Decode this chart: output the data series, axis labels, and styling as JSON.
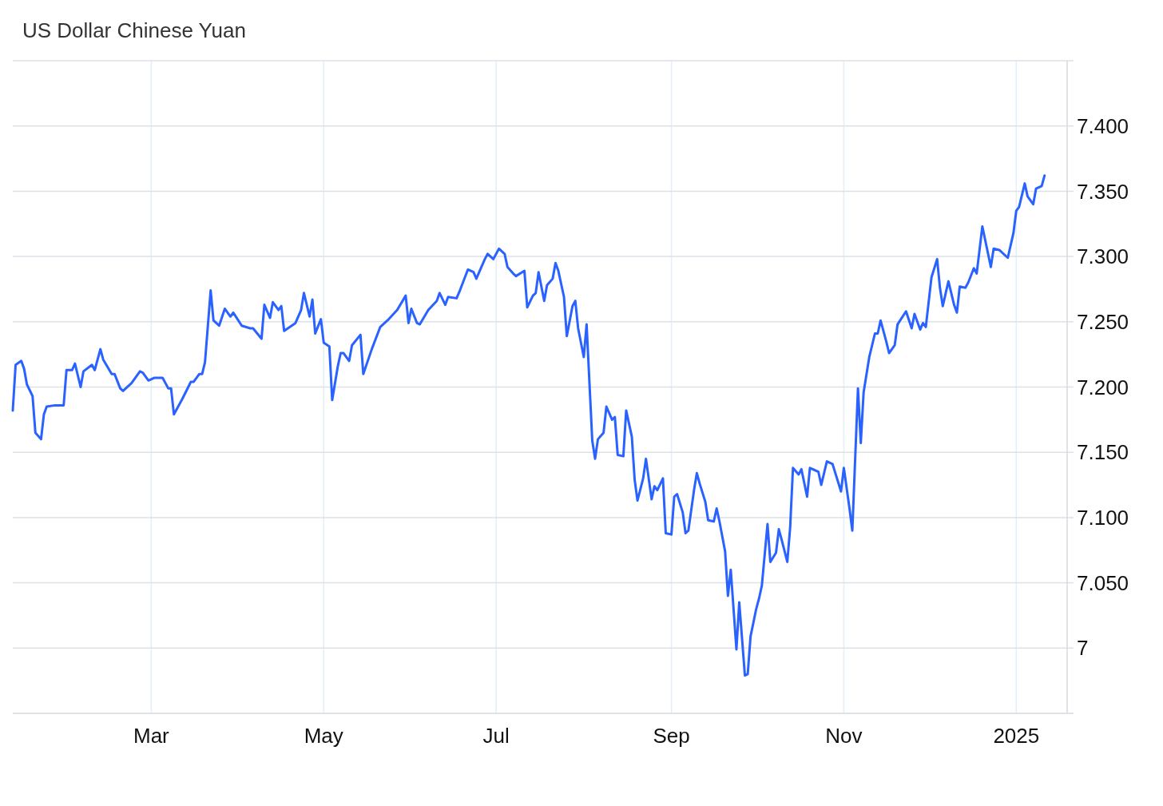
{
  "chart_data": {
    "type": "line",
    "title": "US Dollar Chinese Yuan",
    "xlim": [
      "2024-01-12",
      "2025-01-19"
    ],
    "xticks": [
      {
        "value": "2024-03-01",
        "label": "Mar"
      },
      {
        "value": "2024-05-01",
        "label": "May"
      },
      {
        "value": "2024-07-01",
        "label": "Jul"
      },
      {
        "value": "2024-09-01",
        "label": "Sep"
      },
      {
        "value": "2024-11-01",
        "label": "Nov"
      },
      {
        "value": "2025-01-01",
        "label": "2025"
      }
    ],
    "ylim": [
      6.95,
      7.45
    ],
    "yticks": [
      7,
      {
        "value": 7.05,
        "label": "7.050"
      },
      {
        "value": 7.1,
        "label": "7.100"
      },
      {
        "value": 7.15,
        "label": "7.150"
      },
      {
        "value": 7.2,
        "label": "7.200"
      },
      {
        "value": 7.25,
        "label": "7.250"
      },
      {
        "value": 7.3,
        "label": "7.300"
      },
      {
        "value": 7.35,
        "label": "7.350"
      },
      {
        "value": 7.4,
        "label": "7.400"
      }
    ],
    "grid": true,
    "x": [
      "2024-01-12",
      "2024-01-13",
      "2024-01-15",
      "2024-01-16",
      "2024-01-17",
      "2024-01-19",
      "2024-01-20",
      "2024-01-22",
      "2024-01-23",
      "2024-01-24",
      "2024-01-27",
      "2024-01-30",
      "2024-01-31",
      "2024-02-02",
      "2024-02-03",
      "2024-02-05",
      "2024-02-06",
      "2024-02-09",
      "2024-02-10",
      "2024-02-12",
      "2024-02-13",
      "2024-02-16",
      "2024-02-17",
      "2024-02-19",
      "2024-02-20",
      "2024-02-23",
      "2024-02-26",
      "2024-02-27",
      "2024-02-29",
      "2024-03-02",
      "2024-03-05",
      "2024-03-07",
      "2024-03-08",
      "2024-03-09",
      "2024-03-12",
      "2024-03-15",
      "2024-03-16",
      "2024-03-18",
      "2024-03-19",
      "2024-03-20",
      "2024-03-22",
      "2024-03-23",
      "2024-03-25",
      "2024-03-27",
      "2024-03-29",
      "2024-03-30",
      "2024-04-02",
      "2024-04-05",
      "2024-04-06",
      "2024-04-09",
      "2024-04-10",
      "2024-04-12",
      "2024-04-13",
      "2024-04-15",
      "2024-04-16",
      "2024-04-17",
      "2024-04-21",
      "2024-04-23",
      "2024-04-24",
      "2024-04-26",
      "2024-04-27",
      "2024-04-28",
      "2024-04-30",
      "2024-05-01",
      "2024-05-03",
      "2024-05-04",
      "2024-05-06",
      "2024-05-07",
      "2024-05-08",
      "2024-05-10",
      "2024-05-11",
      "2024-05-14",
      "2024-05-15",
      "2024-05-18",
      "2024-05-21",
      "2024-05-24",
      "2024-05-27",
      "2024-05-30",
      "2024-05-31",
      "2024-06-01",
      "2024-06-03",
      "2024-06-04",
      "2024-06-07",
      "2024-06-10",
      "2024-06-11",
      "2024-06-13",
      "2024-06-14",
      "2024-06-17",
      "2024-06-18",
      "2024-06-21",
      "2024-06-23",
      "2024-06-24",
      "2024-06-25",
      "2024-06-27",
      "2024-06-28",
      "2024-06-30",
      "2024-07-02",
      "2024-07-04",
      "2024-07-05",
      "2024-07-07",
      "2024-07-08",
      "2024-07-11",
      "2024-07-12",
      "2024-07-14",
      "2024-07-15",
      "2024-07-16",
      "2024-07-18",
      "2024-07-19",
      "2024-07-21",
      "2024-07-22",
      "2024-07-23",
      "2024-07-25",
      "2024-07-26",
      "2024-07-28",
      "2024-07-29",
      "2024-07-30",
      "2024-08-01",
      "2024-08-02",
      "2024-08-04",
      "2024-08-05",
      "2024-08-06",
      "2024-08-08",
      "2024-08-09",
      "2024-08-11",
      "2024-08-12",
      "2024-08-13",
      "2024-08-15",
      "2024-08-16",
      "2024-08-18",
      "2024-08-19",
      "2024-08-20",
      "2024-08-22",
      "2024-08-23",
      "2024-08-25",
      "2024-08-26",
      "2024-08-27",
      "2024-08-29",
      "2024-08-30",
      "2024-09-01",
      "2024-09-02",
      "2024-09-03",
      "2024-09-05",
      "2024-09-06",
      "2024-09-07",
      "2024-09-09",
      "2024-09-10",
      "2024-09-11",
      "2024-09-13",
      "2024-09-14",
      "2024-09-16",
      "2024-09-17",
      "2024-09-18",
      "2024-09-20",
      "2024-09-21",
      "2024-09-22",
      "2024-09-24",
      "2024-09-25",
      "2024-09-27",
      "2024-09-28",
      "2024-09-29",
      "2024-10-01",
      "2024-10-02",
      "2024-10-03",
      "2024-10-05",
      "2024-10-06",
      "2024-10-08",
      "2024-10-09",
      "2024-10-10",
      "2024-10-12",
      "2024-10-13",
      "2024-10-14",
      "2024-10-16",
      "2024-10-17",
      "2024-10-19",
      "2024-10-20",
      "2024-10-23",
      "2024-10-24",
      "2024-10-26",
      "2024-10-28",
      "2024-10-30",
      "2024-10-31",
      "2024-11-01",
      "2024-11-03",
      "2024-11-04",
      "2024-11-06",
      "2024-11-07",
      "2024-11-08",
      "2024-11-10",
      "2024-11-12",
      "2024-11-13",
      "2024-11-14",
      "2024-11-16",
      "2024-11-17",
      "2024-11-19",
      "2024-11-20",
      "2024-11-23",
      "2024-11-25",
      "2024-11-26",
      "2024-11-28",
      "2024-11-29",
      "2024-11-30",
      "2024-12-02",
      "2024-12-04",
      "2024-12-05",
      "2024-12-06",
      "2024-12-08",
      "2024-12-10",
      "2024-12-11",
      "2024-12-12",
      "2024-12-14",
      "2024-12-15",
      "2024-12-17",
      "2024-12-18",
      "2024-12-20",
      "2024-12-23",
      "2024-12-24",
      "2024-12-26",
      "2024-12-29",
      "2024-12-31",
      "2025-01-01",
      "2025-01-02",
      "2025-01-04",
      "2025-01-05",
      "2025-01-07",
      "2025-01-08",
      "2025-01-10",
      "2025-01-11"
    ],
    "series": [
      {
        "color": "#2962ff",
        "values": [
          7.182,
          7.217,
          7.22,
          7.214,
          7.202,
          7.193,
          7.165,
          7.16,
          7.179,
          7.185,
          7.186,
          7.186,
          7.213,
          7.213,
          7.218,
          7.2,
          7.212,
          7.217,
          7.213,
          7.229,
          7.221,
          7.21,
          7.21,
          7.199,
          7.197,
          7.203,
          7.212,
          7.211,
          7.205,
          7.207,
          7.207,
          7.199,
          7.199,
          7.179,
          7.191,
          7.204,
          7.204,
          7.21,
          7.21,
          7.219,
          7.274,
          7.251,
          7.247,
          7.26,
          7.254,
          7.257,
          7.247,
          7.245,
          7.245,
          7.237,
          7.263,
          7.253,
          7.265,
          7.259,
          7.262,
          7.243,
          7.249,
          7.259,
          7.272,
          7.254,
          7.267,
          7.241,
          7.252,
          7.234,
          7.231,
          7.19,
          7.216,
          7.226,
          7.226,
          7.22,
          7.232,
          7.24,
          7.21,
          7.229,
          7.246,
          7.252,
          7.259,
          7.27,
          7.249,
          7.26,
          7.249,
          7.248,
          7.259,
          7.266,
          7.272,
          7.263,
          7.269,
          7.268,
          7.273,
          7.29,
          7.288,
          7.283,
          7.288,
          7.298,
          7.302,
          7.298,
          7.306,
          7.302,
          7.292,
          7.287,
          7.285,
          7.289,
          7.261,
          7.27,
          7.272,
          7.288,
          7.266,
          7.278,
          7.283,
          7.295,
          7.289,
          7.269,
          7.239,
          7.262,
          7.266,
          7.245,
          7.223,
          7.248,
          7.159,
          7.145,
          7.16,
          7.165,
          7.185,
          7.175,
          7.177,
          7.148,
          7.147,
          7.182,
          7.162,
          7.129,
          7.113,
          7.13,
          7.145,
          7.114,
          7.124,
          7.121,
          7.13,
          7.088,
          7.087,
          7.116,
          7.118,
          7.104,
          7.088,
          7.09,
          7.121,
          7.134,
          7.126,
          7.112,
          7.098,
          7.097,
          7.107,
          7.097,
          7.074,
          7.04,
          7.06,
          6.999,
          7.035,
          6.979,
          6.98,
          7.009,
          7.03,
          7.038,
          7.048,
          7.095,
          7.066,
          7.073,
          7.091,
          7.083,
          7.066,
          7.092,
          7.138,
          7.133,
          7.137,
          7.116,
          7.138,
          7.135,
          7.125,
          7.143,
          7.141,
          7.127,
          7.12,
          7.138,
          7.107,
          7.09,
          7.199,
          7.157,
          7.196,
          7.223,
          7.241,
          7.241,
          7.251,
          7.235,
          7.226,
          7.232,
          7.248,
          7.258,
          7.245,
          7.256,
          7.244,
          7.249,
          7.246,
          7.284,
          7.298,
          7.276,
          7.262,
          7.281,
          7.263,
          7.257,
          7.277,
          7.276,
          7.28,
          7.291,
          7.287,
          7.323,
          7.292,
          7.306,
          7.305,
          7.299,
          7.318,
          7.335,
          7.338,
          7.356,
          7.346,
          7.34,
          7.352,
          7.354,
          7.362
        ]
      }
    ]
  }
}
